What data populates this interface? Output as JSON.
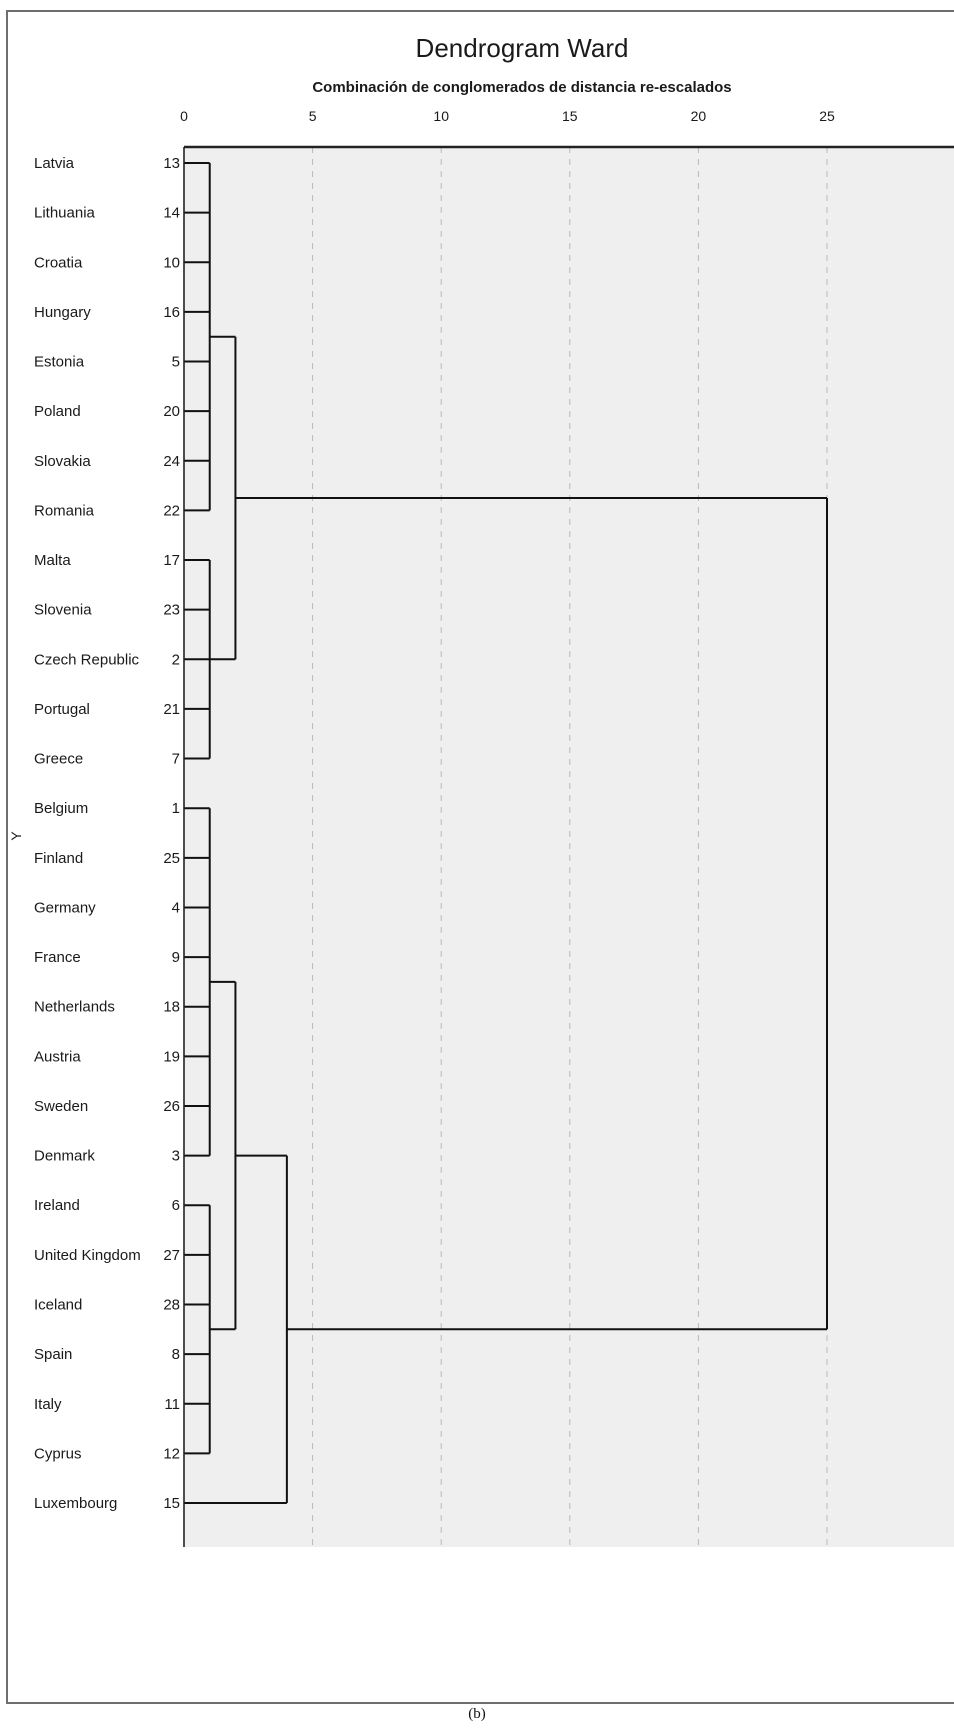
{
  "chart_data": {
    "type": "dendrogram",
    "title": "Dendrogram Ward",
    "subtitle": "Combinación de conglomerados de distancia re-escalados",
    "ylabel": "Y",
    "xticks": [
      0,
      5,
      10,
      15,
      20,
      25
    ],
    "xlim": [
      0,
      25
    ],
    "grid": "vertical dashed",
    "leaves": [
      {
        "name": "Latvia",
        "id": "13"
      },
      {
        "name": "Lithuania",
        "id": "14"
      },
      {
        "name": "Croatia",
        "id": "10"
      },
      {
        "name": "Hungary",
        "id": "16"
      },
      {
        "name": "Estonia",
        "id": "5"
      },
      {
        "name": "Poland",
        "id": "20"
      },
      {
        "name": "Slovakia",
        "id": "24"
      },
      {
        "name": "Romania",
        "id": "22"
      },
      {
        "name": "Malta",
        "id": "17"
      },
      {
        "name": "Slovenia",
        "id": "23"
      },
      {
        "name": "Czech Republic",
        "id": "2"
      },
      {
        "name": "Portugal",
        "id": "21"
      },
      {
        "name": "Greece",
        "id": "7"
      },
      {
        "name": "Belgium",
        "id": "1"
      },
      {
        "name": "Finland",
        "id": "25"
      },
      {
        "name": "Germany",
        "id": "4"
      },
      {
        "name": "France",
        "id": "9"
      },
      {
        "name": "Netherlands",
        "id": "18"
      },
      {
        "name": "Austria",
        "id": "19"
      },
      {
        "name": "Sweden",
        "id": "26"
      },
      {
        "name": "Denmark",
        "id": "3"
      },
      {
        "name": "Ireland",
        "id": "6"
      },
      {
        "name": "United Kingdom",
        "id": "27"
      },
      {
        "name": "Iceland",
        "id": "28"
      },
      {
        "name": "Spain",
        "id": "8"
      },
      {
        "name": "Italy",
        "id": "11"
      },
      {
        "name": "Cyprus",
        "id": "12"
      },
      {
        "name": "Luxembourg",
        "id": "15"
      }
    ],
    "merges": [
      {
        "leaves": [
          0,
          7
        ],
        "distance": 1.0
      },
      {
        "leaves": [
          8,
          12
        ],
        "distance": 1.0
      },
      {
        "leaves": [
          13,
          20
        ],
        "distance": 1.0
      },
      {
        "leaves": [
          21,
          26
        ],
        "distance": 1.0
      },
      {
        "leaves": [
          0,
          12
        ],
        "distance": 2.0
      },
      {
        "leaves": [
          13,
          26
        ],
        "distance": 2.0
      },
      {
        "leaves": [
          13,
          27
        ],
        "distance": 4.0
      },
      {
        "leaves": [
          0,
          27
        ],
        "distance": 25.0
      }
    ]
  },
  "caption": "(b)"
}
